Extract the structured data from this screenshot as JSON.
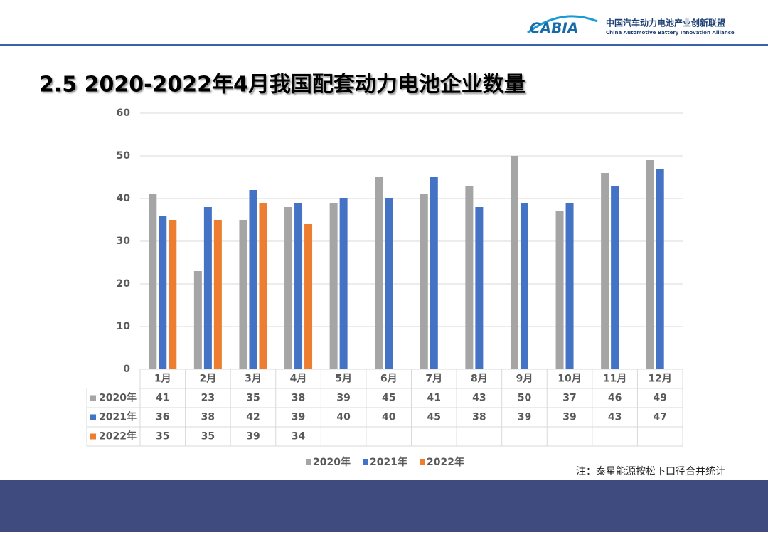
{
  "header": {
    "logo": "CABIA",
    "org_cn": "中国汽车动力电池产业创新联盟",
    "org_en": "China Automotive Battery Innovation Alliance"
  },
  "chart_data": {
    "type": "bar",
    "title": "2.5 2020-2022年4月我国配套动力电池企业数量",
    "categories": [
      "1月",
      "2月",
      "3月",
      "4月",
      "5月",
      "6月",
      "7月",
      "8月",
      "9月",
      "10月",
      "11月",
      "12月"
    ],
    "series": [
      {
        "name": "2020年",
        "color": "#a5a5a5",
        "values": [
          41,
          23,
          35,
          38,
          39,
          45,
          41,
          43,
          50,
          37,
          46,
          49
        ]
      },
      {
        "name": "2021年",
        "color": "#4472c4",
        "values": [
          36,
          38,
          42,
          39,
          40,
          40,
          45,
          38,
          39,
          39,
          43,
          47
        ]
      },
      {
        "name": "2022年",
        "color": "#ed7d31",
        "values": [
          35,
          35,
          39,
          34,
          null,
          null,
          null,
          null,
          null,
          null,
          null,
          null
        ]
      }
    ],
    "ylim": [
      0,
      60
    ],
    "yticks": [
      0,
      10,
      20,
      30,
      40,
      50,
      60
    ],
    "grid": true,
    "note": "注：泰星能源按松下口径合并统计"
  }
}
